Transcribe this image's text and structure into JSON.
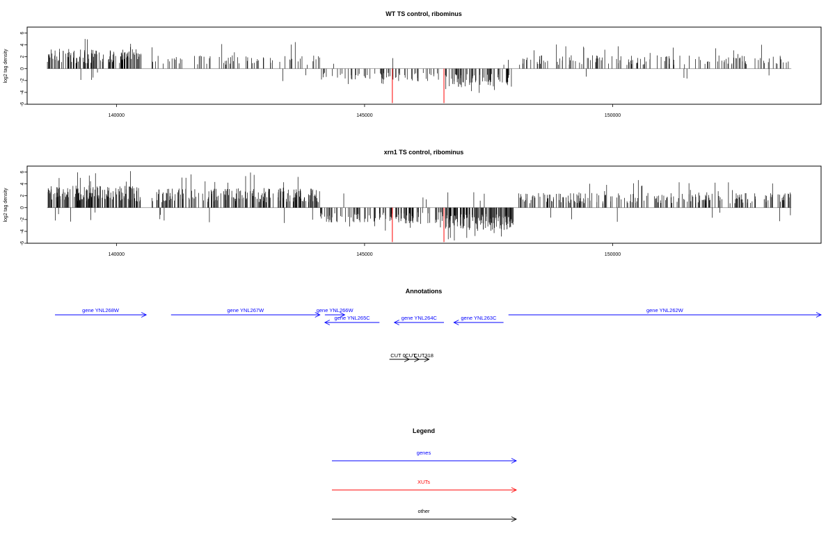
{
  "colors": {
    "gene": "#0000ff",
    "xut": "#ff0000",
    "other": "#000000",
    "bar": "#000000",
    "highlight": "#ff0000"
  },
  "chart_data": [
    {
      "type": "bar",
      "title": "WT TS control, ribominus",
      "ylabel": "log2 tag density",
      "xlim": [
        138200,
        154200
      ],
      "ylim": [
        -6,
        7
      ],
      "x_ticks": [
        140000,
        145000,
        150000
      ],
      "x_tick_labels": [
        "140000",
        "145000",
        "150000"
      ],
      "y_ticks": [
        -6,
        -4,
        -2,
        0,
        2,
        4,
        6
      ],
      "y_tick_labels": [
        "-6",
        "-4",
        "-2",
        "0",
        "2",
        "4",
        "6"
      ],
      "highlight_bars": [
        {
          "x": 145560,
          "y": -5.8
        },
        {
          "x": 146600,
          "y": -5.8
        }
      ],
      "segments": [
        {
          "x_start": 138600,
          "x_end": 140500,
          "sign": 1,
          "density": 7,
          "max": 5.2,
          "typ": 2.6
        },
        {
          "x_start": 140700,
          "x_end": 144100,
          "sign": 1,
          "density": 2,
          "max": 4.8,
          "typ": 1.8
        },
        {
          "x_start": 144100,
          "x_end": 145300,
          "sign": -1,
          "density": 2,
          "max": 3.5,
          "typ": 1.5
        },
        {
          "x_start": 145300,
          "x_end": 146600,
          "sign": -1,
          "density": 3,
          "max": 4.2,
          "typ": 1.8
        },
        {
          "x_start": 146600,
          "x_end": 148000,
          "sign": -1,
          "density": 5,
          "max": 4.2,
          "typ": 2.5
        },
        {
          "x_start": 148100,
          "x_end": 153600,
          "sign": 1,
          "density": 2.5,
          "max": 4.5,
          "typ": 1.8
        }
      ]
    },
    {
      "type": "bar",
      "title": "xrn1 TS control, ribominus",
      "ylabel": "log2 tag density",
      "xlim": [
        138200,
        154200
      ],
      "ylim": [
        -6,
        7
      ],
      "x_ticks": [
        140000,
        145000,
        150000
      ],
      "x_tick_labels": [
        "140000",
        "145000",
        "150000"
      ],
      "y_ticks": [
        -6,
        -4,
        -2,
        0,
        2,
        4,
        6
      ],
      "y_tick_labels": [
        "-6",
        "-4",
        "-2",
        "0",
        "2",
        "4",
        "6"
      ],
      "highlight_bars": [
        {
          "x": 145560,
          "y": -5.8
        },
        {
          "x": 146600,
          "y": -5.8
        }
      ],
      "segments": [
        {
          "x_start": 138600,
          "x_end": 140500,
          "sign": 1,
          "density": 9,
          "max": 6.2,
          "typ": 3.0
        },
        {
          "x_start": 140700,
          "x_end": 144100,
          "sign": 1,
          "density": 6,
          "max": 6.0,
          "typ": 2.6
        },
        {
          "x_start": 144100,
          "x_end": 145300,
          "sign": -1,
          "density": 4,
          "max": 3.5,
          "typ": 2.0
        },
        {
          "x_start": 145300,
          "x_end": 146600,
          "sign": -1,
          "density": 5,
          "max": 4.5,
          "typ": 2.2
        },
        {
          "x_start": 146600,
          "x_end": 148000,
          "sign": -1,
          "density": 10,
          "max": 5.7,
          "typ": 3.0
        },
        {
          "x_start": 148100,
          "x_end": 153600,
          "sign": 1,
          "density": 4,
          "max": 5.2,
          "typ": 2.0
        }
      ]
    }
  ],
  "annotations": {
    "title": "Annotations",
    "genes": [
      {
        "label": "gene YNL268W",
        "start": 138200,
        "end": 140600,
        "strand": "+"
      },
      {
        "label": "gene YNL267W",
        "start": 141100,
        "end": 144100,
        "strand": "+"
      },
      {
        "label": "gene YNL266W",
        "start": 144200,
        "end": 144600,
        "strand": "+"
      },
      {
        "label": "gene YNL265C",
        "start": 144200,
        "end": 145300,
        "strand": "-"
      },
      {
        "label": "gene YNL264C",
        "start": 145600,
        "end": 146600,
        "strand": "-"
      },
      {
        "label": "gene YNL263C",
        "start": 146800,
        "end": 147800,
        "strand": "-"
      },
      {
        "label": "gene YNL262W",
        "start": 147900,
        "end": 154200,
        "strand": "+"
      }
    ],
    "other": [
      {
        "label": "CUT 0",
        "start": 145500,
        "end": 145900,
        "strand": "+"
      },
      {
        "label": "CUT",
        "start": 145700,
        "end": 146100,
        "strand": "+"
      },
      {
        "label": "CUT318",
        "start": 145900,
        "end": 146300,
        "strand": "+"
      }
    ]
  },
  "legend": {
    "title": "Legend",
    "items": [
      {
        "label": "genes",
        "type": "gene"
      },
      {
        "label": "XUTs",
        "type": "xut"
      },
      {
        "label": "other",
        "type": "other"
      }
    ]
  }
}
